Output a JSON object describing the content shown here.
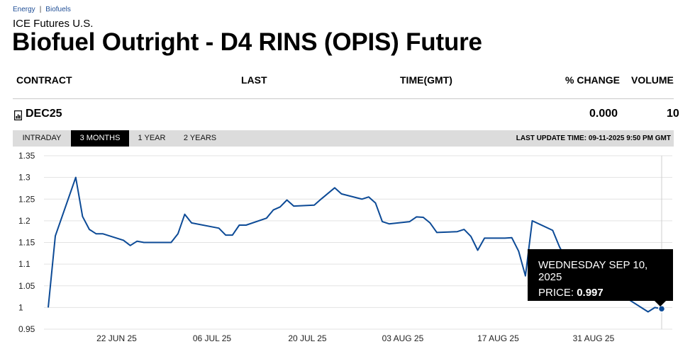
{
  "breadcrumb": {
    "item1": "Energy",
    "separator": "|",
    "item2": "Biofuels"
  },
  "exchange": "ICE Futures U.S.",
  "title": "Biofuel Outright - D4 RINS (OPIS) Future",
  "table": {
    "headers": {
      "contract": "CONTRACT",
      "last": "LAST",
      "time": "TIME(GMT)",
      "change": "% CHANGE",
      "volume": "VOLUME"
    },
    "row": {
      "icon": "chart-icon",
      "contract": "DEC25",
      "last": "",
      "time": "",
      "change": "0.000",
      "volume": "10"
    }
  },
  "tabs": [
    "INTRADAY",
    "3 MONTHS",
    "1 YEAR",
    "2 YEARS"
  ],
  "active_tab": "3 MONTHS",
  "last_update": "LAST UPDATE TIME: 09-11-2025 9:50 PM GMT",
  "tooltip": {
    "date": "WEDNESDAY SEP 10, 2025",
    "price_label": "PRICE:",
    "price_value": "0.997"
  },
  "colors": {
    "line": "#0c4a96",
    "grid": "#e3e3e3",
    "tab_bar": "#dcdcdc",
    "link": "#1f4e96"
  },
  "chart_data": {
    "type": "line",
    "ylim": [
      0.95,
      1.35
    ],
    "yticks": [
      "1.35",
      "1.3",
      "1.25",
      "1.2",
      "1.15",
      "1.1",
      "1.05",
      "1",
      "0.95"
    ],
    "xticks": [
      {
        "label": "22 JUN 25",
        "x": "2025-06-22"
      },
      {
        "label": "06 JUL 25",
        "x": "2025-07-06"
      },
      {
        "label": "20 JUL 25",
        "x": "2025-07-20"
      },
      {
        "label": "03 AUG 25",
        "x": "2025-08-03"
      },
      {
        "label": "17 AUG 25",
        "x": "2025-08-17"
      },
      {
        "label": "31 AUG 25",
        "x": "2025-08-31"
      }
    ],
    "xlim": [
      "2025-06-13",
      "2025-09-12"
    ],
    "series": [
      {
        "x": [
          "2025-06-12",
          "2025-06-13",
          "2025-06-16",
          "2025-06-17",
          "2025-06-18",
          "2025-06-19",
          "2025-06-20",
          "2025-06-23",
          "2025-06-24",
          "2025-06-25",
          "2025-06-26",
          "2025-06-27",
          "2025-06-30",
          "2025-07-01",
          "2025-07-02",
          "2025-07-03",
          "2025-07-07",
          "2025-07-08",
          "2025-07-09",
          "2025-07-10",
          "2025-07-11",
          "2025-07-14",
          "2025-07-15",
          "2025-07-16",
          "2025-07-17",
          "2025-07-18",
          "2025-07-21",
          "2025-07-22",
          "2025-07-23",
          "2025-07-24",
          "2025-07-25",
          "2025-07-28",
          "2025-07-29",
          "2025-07-30",
          "2025-07-31",
          "2025-08-01",
          "2025-08-04",
          "2025-08-05",
          "2025-08-06",
          "2025-08-07",
          "2025-08-08",
          "2025-08-11",
          "2025-08-12",
          "2025-08-13",
          "2025-08-14",
          "2025-08-15",
          "2025-08-18",
          "2025-08-19",
          "2025-08-20",
          "2025-08-21",
          "2025-08-22",
          "2025-08-25",
          "2025-08-26",
          "2025-08-27",
          "2025-08-28",
          "2025-08-29",
          "2025-09-01",
          "2025-09-02",
          "2025-09-03",
          "2025-09-04",
          "2025-09-05",
          "2025-09-08",
          "2025-09-09",
          "2025-09-10"
        ],
        "y": [
          1.0,
          1.165,
          1.3,
          1.21,
          1.18,
          1.17,
          1.17,
          1.155,
          1.143,
          1.153,
          1.15,
          1.15,
          1.15,
          1.17,
          1.215,
          1.195,
          1.183,
          1.167,
          1.167,
          1.19,
          1.19,
          1.206,
          1.225,
          1.232,
          1.248,
          1.234,
          1.236,
          1.25,
          1.263,
          1.276,
          1.262,
          1.25,
          1.255,
          1.241,
          1.198,
          1.193,
          1.198,
          1.209,
          1.208,
          1.195,
          1.173,
          1.175,
          1.18,
          1.164,
          1.132,
          1.16,
          1.16,
          1.161,
          1.13,
          1.073,
          1.2,
          1.178,
          1.14,
          1.11,
          1.08,
          1.065,
          1.07,
          1.06,
          1.04,
          1.03,
          1.02,
          0.99,
          1.0,
          0.997
        ]
      }
    ]
  }
}
